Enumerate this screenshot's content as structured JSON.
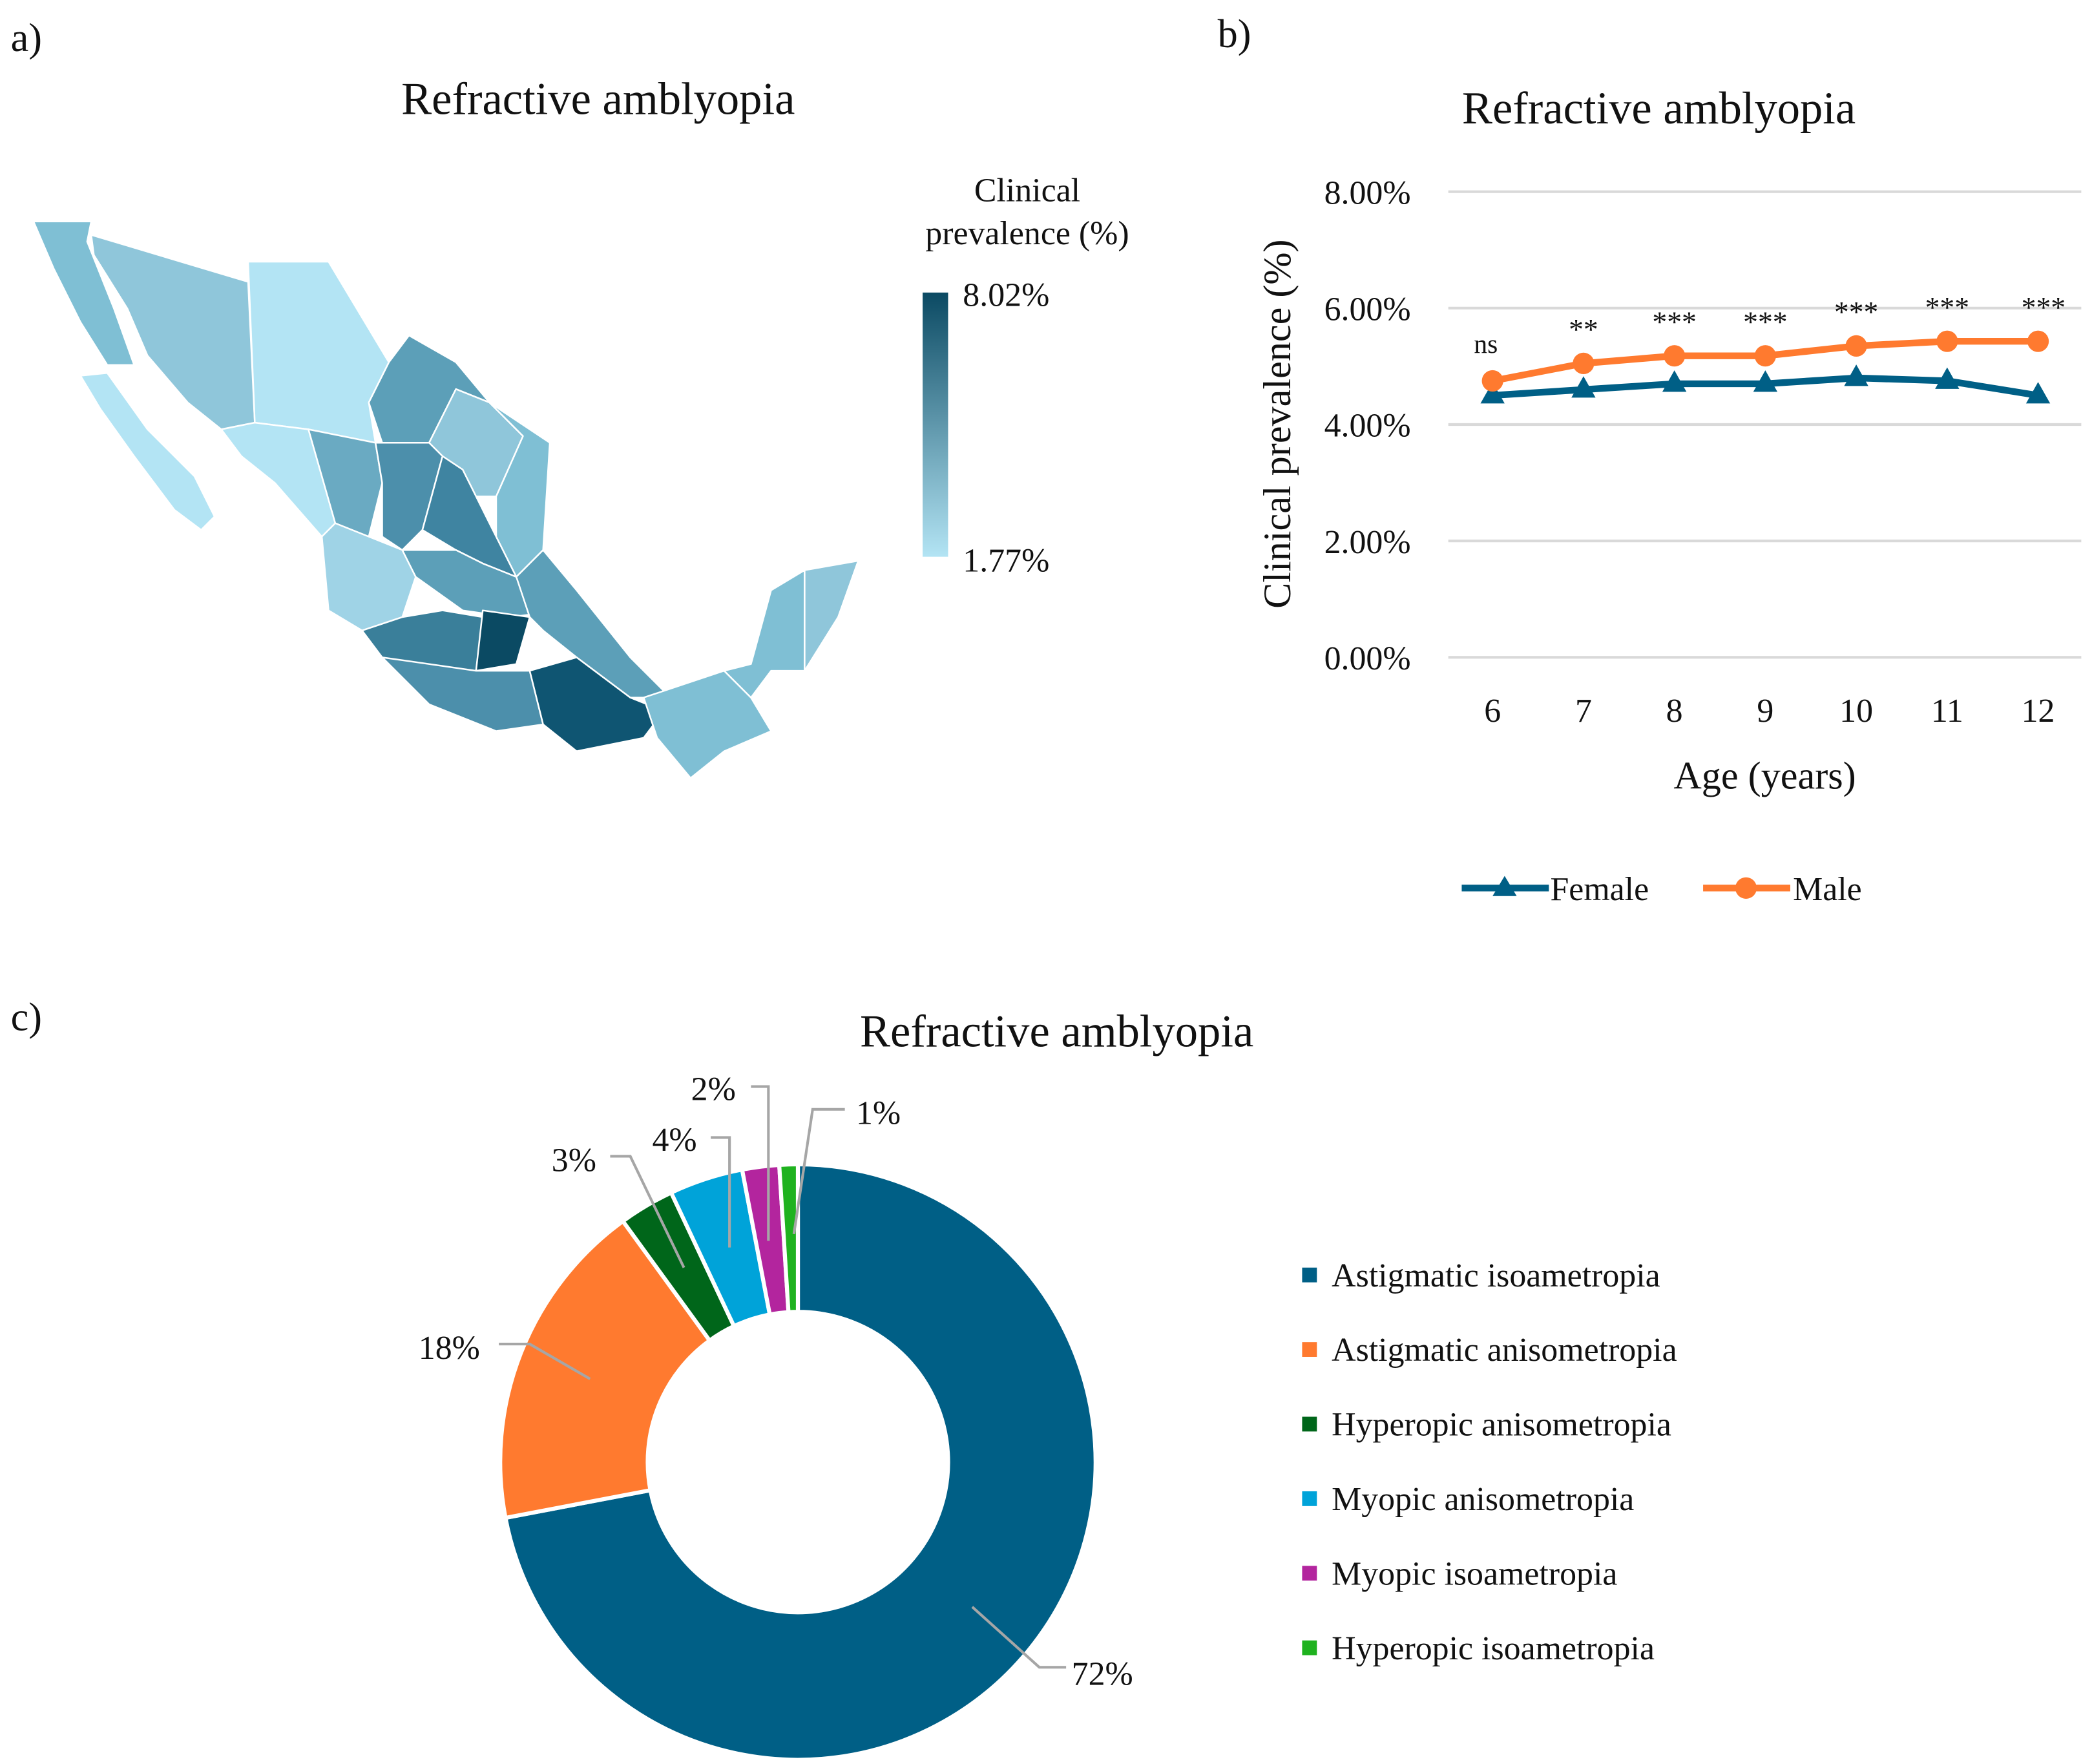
{
  "panels": {
    "a": "a)",
    "b": "b)",
    "c": "c)"
  },
  "map": {
    "title": "Refractive amblyopia",
    "legend_title_line1": "Clinical",
    "legend_title_line2": "prevalence (%)",
    "legend_max": "8.02%",
    "legend_min": "1.77%",
    "color_low": "#b3e4f4",
    "color_high": "#0b4a63"
  },
  "chart_data": [
    {
      "type": "line",
      "title": "Refractive amblyopia",
      "xlabel": "Age (years)",
      "ylabel": "Clinical prevalence (%)",
      "categories": [
        "6",
        "7",
        "8",
        "9",
        "10",
        "11",
        "12"
      ],
      "ylim": [
        0,
        8
      ],
      "yticks": [
        "0.00%",
        "2.00%",
        "4.00%",
        "6.00%",
        "8.00%"
      ],
      "grid": true,
      "legend_position": "bottom",
      "series": [
        {
          "name": "Female",
          "color": "#005f86",
          "marker": "triangle",
          "values": [
            4.5,
            4.6,
            4.7,
            4.7,
            4.8,
            4.75,
            4.5
          ]
        },
        {
          "name": "Male",
          "color": "#ff7a2f",
          "marker": "circle",
          "values": [
            4.75,
            5.05,
            5.18,
            5.18,
            5.35,
            5.43,
            5.43
          ]
        }
      ],
      "annotations": [
        "ns",
        "**",
        "***",
        "***",
        "***",
        "***",
        "***"
      ]
    },
    {
      "type": "pie",
      "title": "Refractive amblyopia",
      "donut": true,
      "legend_position": "right",
      "slices": [
        {
          "name": "Astigmatic isoametropia",
          "value": 72,
          "label": "72%",
          "color": "#005f86"
        },
        {
          "name": "Astigmatic anisometropia",
          "value": 18,
          "label": "18%",
          "color": "#ff7a2f"
        },
        {
          "name": "Hyperopic anisometropia",
          "value": 3,
          "label": "3%",
          "color": "#00661a"
        },
        {
          "name": "Myopic anisometropia",
          "value": 4,
          "label": "4%",
          "color": "#00a3d9"
        },
        {
          "name": "Myopic isoametropia",
          "value": 2,
          "label": "2%",
          "color": "#b3259e"
        },
        {
          "name": "Hyperopic isoametropia",
          "value": 1,
          "label": "1%",
          "color": "#1fb21f"
        }
      ]
    }
  ]
}
